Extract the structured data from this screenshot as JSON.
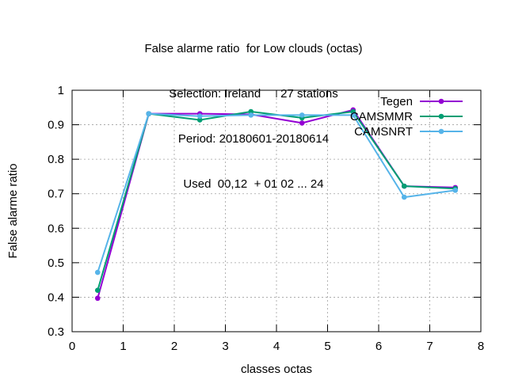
{
  "chart_data": {
    "type": "line",
    "title_lines": [
      "False alarme ratio  for Low clouds (octas)",
      "Selection: Ireland      27 stations",
      "Period: 20180601-20180614",
      "Used  00,12  + 01 02 ... 24"
    ],
    "xlabel": "classes octas",
    "ylabel": "False alarme ratio",
    "xlim": [
      0,
      8
    ],
    "ylim": [
      0.3,
      1.0
    ],
    "xticks": [
      "0",
      "1",
      "2",
      "3",
      "4",
      "5",
      "6",
      "7",
      "8"
    ],
    "yticks": [
      "0.3",
      "0.4",
      "0.5",
      "0.6",
      "0.7",
      "0.8",
      "0.9",
      "1"
    ],
    "grid": true,
    "legend_position": "top-right",
    "x": [
      0.5,
      1.5,
      2.5,
      3.5,
      4.5,
      5.5,
      6.5,
      7.5
    ],
    "series": [
      {
        "name": "Tegen",
        "color": "#9400d3",
        "values": [
          0.397,
          0.932,
          0.932,
          0.93,
          0.905,
          0.943,
          0.722,
          0.718
        ]
      },
      {
        "name": "CAMSMMR",
        "color": "#009e73",
        "values": [
          0.42,
          0.932,
          0.914,
          0.938,
          0.92,
          0.938,
          0.722,
          0.715
        ]
      },
      {
        "name": "CAMSNRT",
        "color": "#56b4e9",
        "values": [
          0.472,
          0.932,
          0.925,
          0.928,
          0.928,
          0.928,
          0.69,
          0.71
        ]
      }
    ]
  }
}
